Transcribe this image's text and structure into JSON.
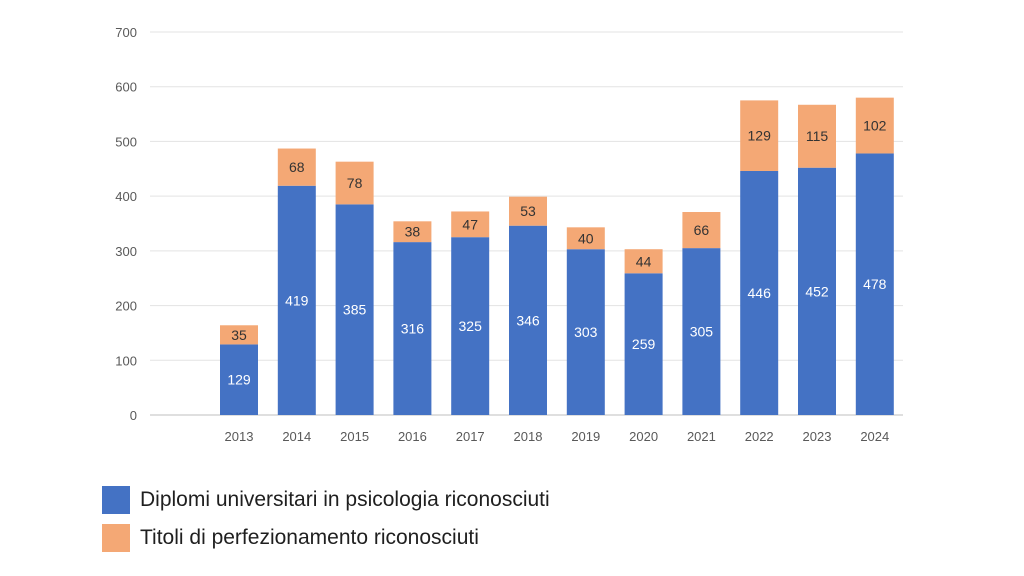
{
  "chart_data": {
    "type": "bar",
    "stacked": true,
    "categories": [
      "2013",
      "2014",
      "2015",
      "2016",
      "2017",
      "2018",
      "2019",
      "2020",
      "2021",
      "2022",
      "2023",
      "2024"
    ],
    "series": [
      {
        "name": "Diplomi universitari in psicologia riconosciuti",
        "color": "#4472C4",
        "label_color": "#ffffff",
        "values": [
          129,
          419,
          385,
          316,
          325,
          346,
          303,
          259,
          305,
          446,
          452,
          478
        ]
      },
      {
        "name": "Titoli di perfezionamento riconosciuti",
        "color": "#F4A875",
        "label_color": "#333333",
        "values": [
          35,
          68,
          78,
          38,
          47,
          53,
          40,
          44,
          66,
          129,
          115,
          102
        ]
      }
    ],
    "yticks": [
      "0",
      "100",
      "200",
      "300",
      "400",
      "500",
      "600",
      "700"
    ],
    "ylim": [
      0,
      700
    ],
    "grid": true,
    "legend_position": "bottom-left"
  }
}
